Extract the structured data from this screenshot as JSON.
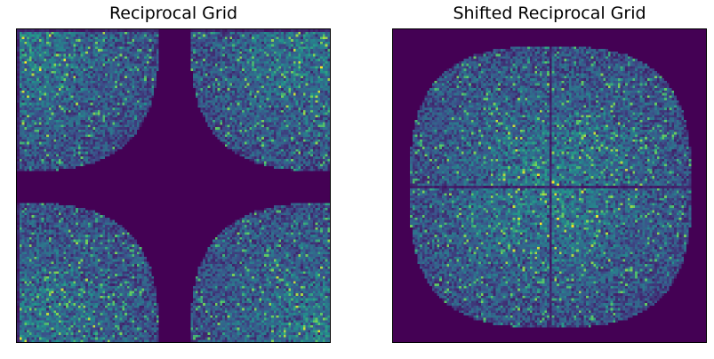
{
  "chart_data": [
    {
      "type": "heatmap",
      "title": "Reciprocal Grid",
      "xlabel": "",
      "ylabel": "",
      "grid": false,
      "axes_ticks": false,
      "colormap": "viridis",
      "grid_resolution": 128,
      "support_radius_fraction": 0.45,
      "content_location": "corners",
      "background_color": "#440154",
      "accent_color": "#35b779"
    },
    {
      "type": "heatmap",
      "title": "Shifted Reciprocal Grid",
      "xlabel": "",
      "ylabel": "",
      "grid": false,
      "axes_ticks": false,
      "colormap": "viridis",
      "grid_resolution": 128,
      "support_radius_fraction": 0.45,
      "content_location": "center",
      "background_color": "#440154",
      "accent_color": "#35b779"
    }
  ]
}
